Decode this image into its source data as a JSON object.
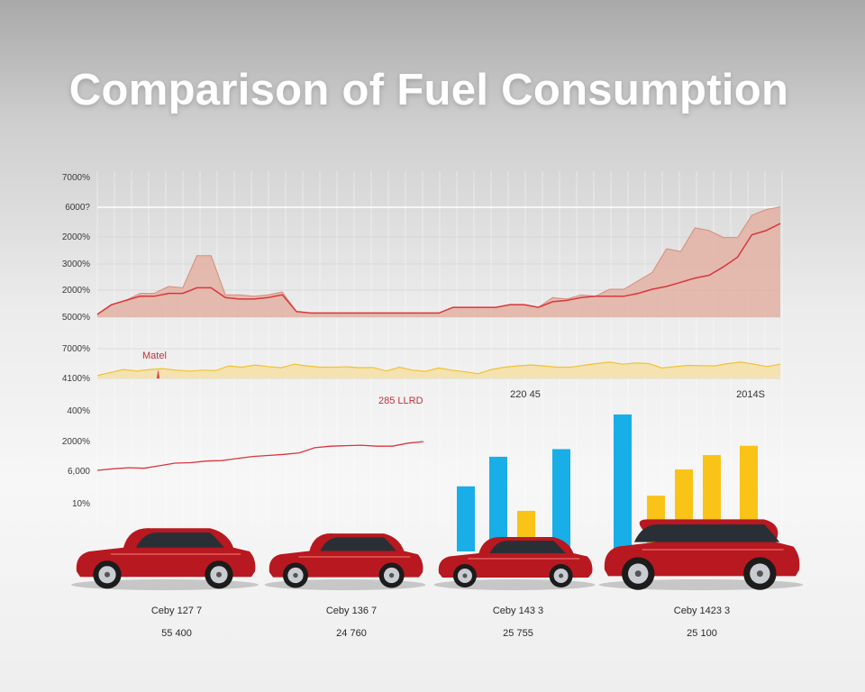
{
  "title": "Comparison of Fuel Consumption",
  "colors": {
    "area_fill": "#e2b2a2",
    "red_line": "#d9363e",
    "band_fill": "#f5dfa4",
    "band_line": "#f2c230",
    "blue_bar": "#18aee8",
    "yellow_bar": "#f9c318",
    "car_body": "#b8181f"
  },
  "chart_data": [
    {
      "type": "area",
      "yticks": [
        "7000%",
        "6000?",
        "2000%",
        "3000%",
        "2000%",
        "5000%"
      ],
      "ylim": [
        0,
        100
      ],
      "series": [
        {
          "values": [
            2,
            9,
            12,
            17,
            17,
            22,
            21,
            44,
            44,
            16,
            16,
            15,
            16,
            18,
            4,
            3,
            3,
            3,
            3,
            3,
            3,
            3,
            3,
            3,
            3,
            7,
            7,
            7,
            7,
            9,
            9,
            7,
            14,
            13,
            16,
            15,
            20,
            20,
            26,
            32,
            49,
            47,
            64,
            62,
            57,
            57,
            73,
            77,
            79
          ]
        },
        {
          "values": [
            2,
            9,
            12,
            15,
            15,
            17,
            17,
            21,
            21,
            14,
            13,
            13,
            14,
            16,
            4,
            3,
            3,
            3,
            3,
            3,
            3,
            3,
            3,
            3,
            3,
            7,
            7,
            7,
            7,
            9,
            9,
            7,
            11,
            12,
            14,
            15,
            15,
            15,
            17,
            20,
            22,
            25,
            28,
            30,
            36,
            43,
            59,
            62,
            67
          ]
        }
      ],
      "grid": true
    },
    {
      "type": "area",
      "yticks": [
        "7000%",
        "4100%"
      ],
      "annotation": "Matel",
      "ylim": [
        0,
        100
      ],
      "series": [
        {
          "values": [
            10,
            20,
            30,
            25,
            30,
            33,
            28,
            25,
            28,
            26,
            42,
            38,
            45,
            40,
            36,
            48,
            42,
            38,
            38,
            39,
            36,
            37,
            25,
            38,
            28,
            24,
            35,
            28,
            22,
            16,
            30,
            38,
            42,
            45,
            42,
            38,
            38,
            44,
            50,
            55,
            48,
            52,
            50,
            35,
            40,
            44,
            43,
            42,
            50,
            55,
            48,
            40,
            48
          ]
        }
      ],
      "grid": true
    },
    {
      "type": "line",
      "yticks": [
        "400%",
        "2000%",
        "6,000",
        "10%"
      ],
      "annotation": "285 LLRD",
      "ylim": [
        0,
        100
      ],
      "series": [
        {
          "values": [
            0,
            3,
            5,
            4,
            9,
            14,
            15,
            18,
            19,
            23,
            27,
            29,
            31,
            34,
            44,
            47,
            48,
            49,
            47,
            47,
            53,
            56
          ]
        }
      ],
      "grid": true
    },
    {
      "type": "bar",
      "annotations": [
        "220 45",
        "2014S"
      ],
      "ylim": [
        0,
        160
      ],
      "series": [
        {
          "color": "blue",
          "values": [
            77,
            112,
            121,
            162
          ]
        },
        {
          "color": "yellow",
          "values": [
            48,
            66,
            97,
            114
          ]
        }
      ],
      "captions": [
        {
          "name": "Ceby 127 7",
          "value": "55 400"
        },
        {
          "name": "Ceby 136 7",
          "value": "24 760"
        },
        {
          "name": "Ceby 143 3",
          "value": "25 755"
        },
        {
          "name": "Ceby 1423 3",
          "value": "25 100"
        }
      ]
    }
  ]
}
